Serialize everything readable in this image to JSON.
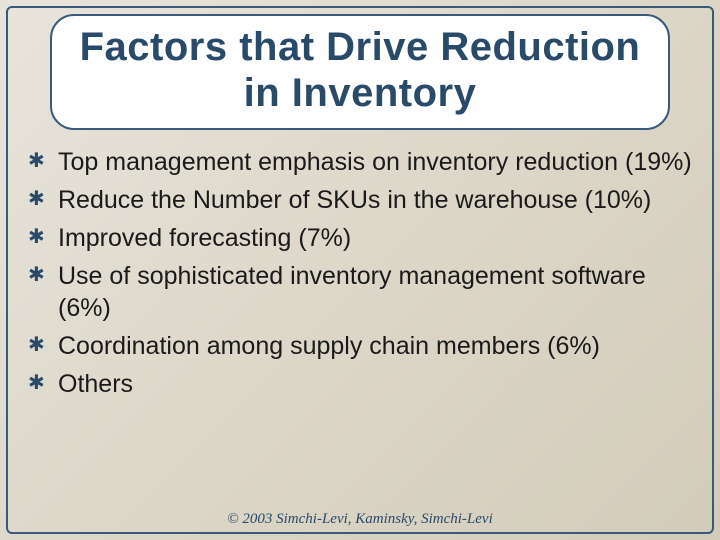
{
  "slide": {
    "title": "Factors that Drive Reduction in Inventory",
    "title_fontsize": 40,
    "title_color": "#2a4a6a",
    "title_bg": "#ffffff",
    "border_color": "#3a5a7a",
    "background_gradient": [
      "#e8e4dc",
      "#ddd7c9",
      "#d3ccba"
    ],
    "bullets": [
      "Top management emphasis on inventory reduction (19%)",
      "Reduce the Number of SKUs in the warehouse (10%)",
      "Improved forecasting (7%)",
      "Use of sophisticated inventory management software (6%)",
      "Coordination among supply chain members (6%)",
      "Others"
    ],
    "bullet_fontsize": 25,
    "bullet_color": "#1a1a1a",
    "bullet_icon_glyph": "✱",
    "bullet_icon_color": "#2a4a6a",
    "footer": "© 2003 Simchi-Levi, Kaminsky, Simchi-Levi",
    "footer_fontsize": 15,
    "footer_color": "#2a4a6a"
  }
}
